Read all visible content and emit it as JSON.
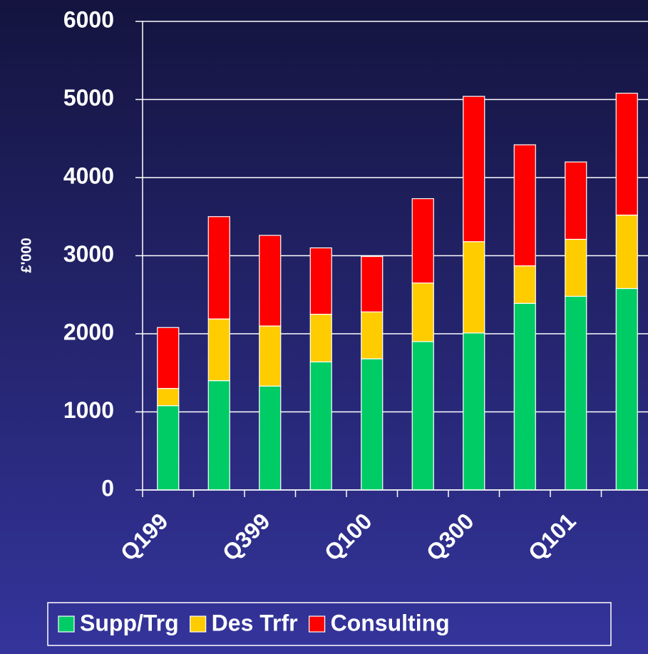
{
  "chart_data": {
    "type": "stacked_bar",
    "y_label": "£'000",
    "categories": [
      "Q199",
      null,
      "Q399",
      null,
      "Q100",
      null,
      "Q300",
      null,
      "Q101",
      null
    ],
    "series": [
      {
        "name": "Supp/Trg",
        "color": "#00cc66",
        "values": [
          1080,
          1400,
          1330,
          1640,
          1680,
          1900,
          2010,
          2390,
          2480,
          2580
        ]
      },
      {
        "name": "Des Trfr",
        "color": "#ffcc00",
        "values": [
          220,
          790,
          770,
          610,
          600,
          750,
          1170,
          480,
          730,
          940
        ]
      },
      {
        "name": "Consulting",
        "color": "#ff0000",
        "values": [
          780,
          1310,
          1160,
          850,
          710,
          1080,
          1860,
          1550,
          990,
          1560
        ]
      }
    ],
    "ylim": [
      0,
      6000
    ],
    "yticks": [
      0,
      1000,
      2000,
      3000,
      4000,
      5000,
      6000
    ],
    "grid": true,
    "legend": "bottom"
  }
}
